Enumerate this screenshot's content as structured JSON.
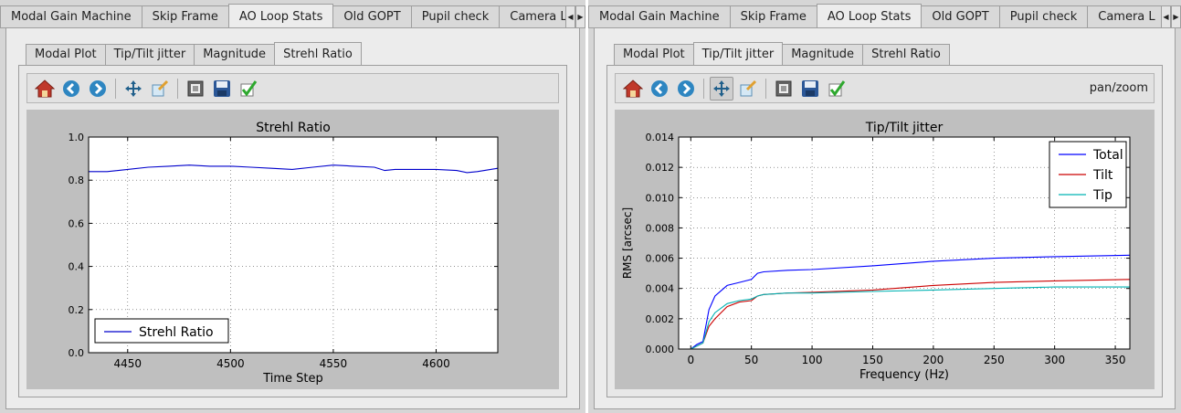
{
  "left": {
    "outer_tabs": [
      "Modal Gain Machine",
      "Skip Frame",
      "AO Loop Stats",
      "Old GOPT",
      "Pupil check",
      "Camera L"
    ],
    "outer_active": 2,
    "inner_tabs": [
      "Modal Plot",
      "Tip/Tilt jitter",
      "Magnitude",
      "Strehl Ratio"
    ],
    "inner_active": 3,
    "toolbar_status": ""
  },
  "right": {
    "outer_tabs": [
      "Modal Gain Machine",
      "Skip Frame",
      "AO Loop Stats",
      "Old GOPT",
      "Pupil check",
      "Camera L"
    ],
    "outer_active": 2,
    "inner_tabs": [
      "Modal Plot",
      "Tip/Tilt jitter",
      "Magnitude",
      "Strehl Ratio"
    ],
    "inner_active": 1,
    "toolbar_status": "pan/zoom"
  },
  "icons": [
    "home-icon",
    "back-icon",
    "forward-icon",
    "pan-icon",
    "zoom-icon",
    "configure-subplots-icon",
    "save-icon",
    "edit-curves-icon"
  ],
  "colors": {
    "total": "#0000ff",
    "tilt": "#cc0000",
    "tip": "#00b3b3",
    "strehl": "#0000cc"
  },
  "chart_data": [
    {
      "type": "line",
      "title": "Strehl Ratio",
      "xlabel": "Time Step",
      "ylabel": "",
      "xlim": [
        4431,
        4630
      ],
      "ylim": [
        0.0,
        1.0
      ],
      "xticks": [
        4450,
        4500,
        4550,
        4600
      ],
      "yticks": [
        0.0,
        0.2,
        0.4,
        0.6,
        0.8,
        1.0
      ],
      "xtick_labels": [
        "4450",
        "4500",
        "4550",
        "4600"
      ],
      "ytick_labels": [
        "0.0",
        "0.2",
        "0.4",
        "0.6",
        "0.8",
        "1.0"
      ],
      "grid": true,
      "legend": "lower-left",
      "series": [
        {
          "name": "Strehl Ratio",
          "x": [
            4431,
            4440,
            4450,
            4460,
            4470,
            4480,
            4490,
            4500,
            4510,
            4520,
            4530,
            4540,
            4550,
            4560,
            4570,
            4575,
            4580,
            4590,
            4600,
            4610,
            4615,
            4620,
            4630
          ],
          "y": [
            0.84,
            0.84,
            0.85,
            0.86,
            0.865,
            0.87,
            0.865,
            0.865,
            0.86,
            0.855,
            0.85,
            0.86,
            0.87,
            0.865,
            0.86,
            0.845,
            0.85,
            0.85,
            0.85,
            0.845,
            0.835,
            0.84,
            0.855
          ]
        }
      ]
    },
    {
      "type": "line",
      "title": "Tip/Tilt jitter",
      "xlabel": "Frequency (Hz)",
      "ylabel": "RMS [arcsec]",
      "xlim": [
        -10,
        362
      ],
      "ylim": [
        0.0,
        0.014
      ],
      "xticks": [
        0,
        50,
        100,
        150,
        200,
        250,
        300,
        350
      ],
      "yticks": [
        0.0,
        0.002,
        0.004,
        0.006,
        0.008,
        0.01,
        0.012,
        0.014
      ],
      "xtick_labels": [
        "0",
        "50",
        "100",
        "150",
        "200",
        "250",
        "300",
        "350"
      ],
      "ytick_labels": [
        "0.000",
        "0.002",
        "0.004",
        "0.006",
        "0.008",
        "0.010",
        "0.012",
        "0.014"
      ],
      "grid": true,
      "legend": "upper-right",
      "series": [
        {
          "name": "Total",
          "x": [
            0,
            5,
            10,
            15,
            20,
            30,
            40,
            50,
            55,
            60,
            80,
            100,
            150,
            200,
            250,
            300,
            362
          ],
          "y": [
            0.0,
            0.0003,
            0.0005,
            0.0026,
            0.0035,
            0.0042,
            0.0044,
            0.0046,
            0.005,
            0.0051,
            0.0052,
            0.00525,
            0.0055,
            0.0058,
            0.006,
            0.0061,
            0.0062
          ]
        },
        {
          "name": "Tilt",
          "x": [
            0,
            5,
            10,
            15,
            20,
            30,
            40,
            50,
            55,
            60,
            80,
            100,
            150,
            200,
            250,
            300,
            362
          ],
          "y": [
            0.0,
            0.0002,
            0.0004,
            0.0015,
            0.002,
            0.0028,
            0.0031,
            0.0032,
            0.0035,
            0.0036,
            0.0037,
            0.00375,
            0.0039,
            0.0042,
            0.0044,
            0.0045,
            0.0046
          ]
        },
        {
          "name": "Tip",
          "x": [
            0,
            5,
            10,
            15,
            20,
            30,
            40,
            50,
            55,
            60,
            80,
            100,
            150,
            200,
            250,
            300,
            362
          ],
          "y": [
            0.0,
            0.0002,
            0.0004,
            0.0018,
            0.0024,
            0.003,
            0.0032,
            0.0033,
            0.0035,
            0.0036,
            0.0037,
            0.0037,
            0.0038,
            0.0039,
            0.004,
            0.0041,
            0.0041
          ]
        }
      ]
    }
  ]
}
